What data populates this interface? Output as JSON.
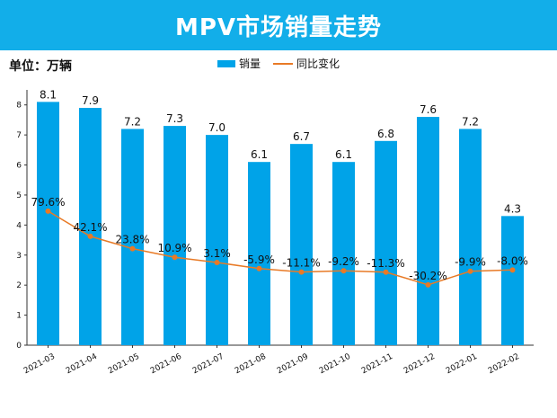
{
  "chart_data": {
    "type": "bar",
    "title": "MPV市场销量走势",
    "unit_label": "单位：万辆",
    "legend": {
      "bar": "销量",
      "line": "同比变化"
    },
    "categories": [
      "2021-03",
      "2021-04",
      "2021-05",
      "2021-06",
      "2021-07",
      "2021-08",
      "2021-09",
      "2021-10",
      "2021-11",
      "2021-12",
      "2022-01",
      "2022-02"
    ],
    "series": [
      {
        "name": "销量",
        "type": "bar",
        "values": [
          8.1,
          7.9,
          7.2,
          7.3,
          7.0,
          6.1,
          6.7,
          6.1,
          6.8,
          7.6,
          7.2,
          4.3
        ],
        "labels": [
          "8.1",
          "7.9",
          "7.2",
          "7.3",
          "7.0",
          "6.1",
          "6.7",
          "6.1",
          "6.8",
          "7.6",
          "7.2",
          "4.3"
        ]
      },
      {
        "name": "同比变化",
        "type": "line",
        "labels": [
          "79.6%",
          "42.1%",
          "23.8%",
          "10.9%",
          "3.1%",
          "-5.9%",
          "-11.1%",
          "-9.2%",
          "-11.3%",
          "-30.2%",
          "-9.9%",
          "-8.0%"
        ]
      }
    ],
    "ylim": [
      0,
      8.5
    ],
    "yticks": [
      "0",
      "1",
      "2",
      "3",
      "4",
      "5",
      "6",
      "7",
      "8"
    ],
    "colors": {
      "bar": "#00a3e8",
      "line": "#e87a26",
      "title_bg": "#12aee9"
    }
  }
}
